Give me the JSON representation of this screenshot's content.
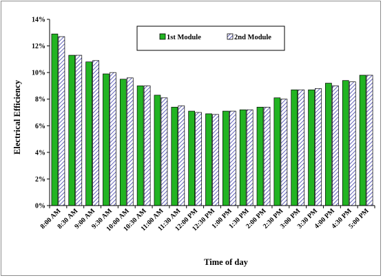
{
  "chart_data": {
    "type": "bar",
    "xlabel": "Time of day",
    "ylabel": "Electrical Efficiency",
    "ylim": [
      0,
      14
    ],
    "yticks": [
      "0%",
      "2%",
      "4%",
      "6%",
      "8%",
      "10%",
      "12%",
      "14%"
    ],
    "y_unit": "%",
    "grid": false,
    "legend_position": "top-center",
    "categories": [
      "8:00 AM",
      "8:30 AM",
      "9:00 AM",
      "9:30 AM",
      "10:00 AM",
      "10:30 AM",
      "11:00 AM",
      "11:30 AM",
      "12:00 PM",
      "12:30 PM",
      "1:00 PM",
      "1:30 PM",
      "2:00 PM",
      "2:30 PM",
      "3:00 PM",
      "3:30 PM",
      "4:00 PM",
      "4:30 PM",
      "5:00 PM"
    ],
    "series": [
      {
        "name": "1st Module",
        "color": "#22b422",
        "pattern": "solid",
        "values": [
          12.9,
          11.3,
          10.8,
          9.9,
          9.5,
          9.0,
          8.3,
          7.4,
          7.1,
          6.9,
          7.1,
          7.2,
          7.4,
          8.1,
          8.7,
          8.7,
          9.2,
          9.4,
          9.8
        ]
      },
      {
        "name": "2nd Module",
        "color": "#3a3aa8",
        "pattern": "diagonal-hatch",
        "values": [
          12.7,
          11.3,
          10.9,
          10.0,
          9.6,
          9.0,
          8.1,
          7.5,
          7.0,
          6.85,
          7.1,
          7.2,
          7.4,
          8.0,
          8.7,
          8.8,
          9.0,
          9.3,
          9.8
        ]
      }
    ]
  }
}
